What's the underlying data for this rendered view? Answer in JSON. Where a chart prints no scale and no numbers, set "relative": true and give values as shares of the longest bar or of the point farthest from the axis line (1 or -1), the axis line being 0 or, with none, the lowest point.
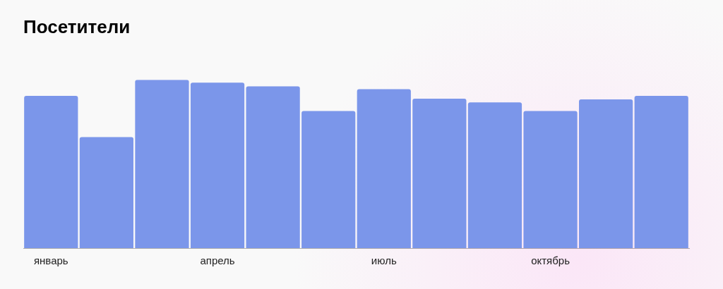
{
  "chart_data": {
    "type": "bar",
    "title": "Посетители",
    "relative": true,
    "legend": false,
    "categories": [
      "январь",
      null,
      null,
      "апрель",
      null,
      null,
      "июль",
      null,
      null,
      "октябрь",
      null,
      null
    ],
    "series": [
      {
        "color": "#7b96ea",
        "values": [
          0.905,
          0.66,
          1,
          0.983,
          0.961,
          0.815,
          0.944,
          0.888,
          0.866,
          0.815,
          0.884,
          0.905
        ]
      }
    ]
  }
}
